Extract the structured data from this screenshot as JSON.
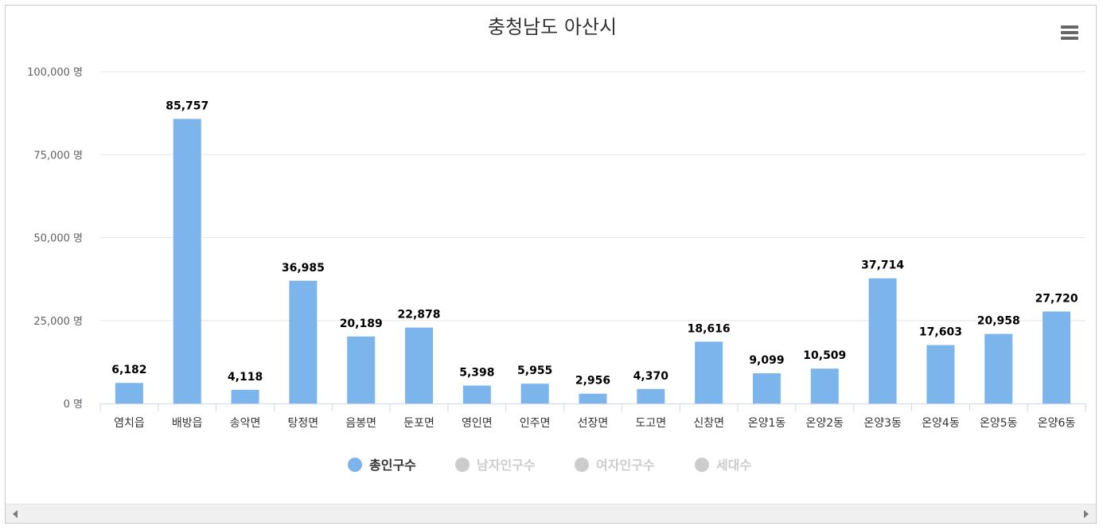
{
  "chart_data": {
    "type": "bar",
    "title": "충청남도 아산시",
    "categories": [
      "염치읍",
      "배방읍",
      "송악면",
      "탕정면",
      "음봉면",
      "둔포면",
      "영인면",
      "인주면",
      "선장면",
      "도고면",
      "신창면",
      "온양1동",
      "온양2동",
      "온양3동",
      "온양4동",
      "온양5동",
      "온양6동"
    ],
    "series": [
      {
        "name": "총인구수",
        "visible": true,
        "values": [
          6182,
          85757,
          4118,
          36985,
          20189,
          22878,
          5398,
          5955,
          2956,
          4370,
          18616,
          9099,
          10509,
          37714,
          17603,
          20958,
          27720
        ],
        "labels": [
          "6,182",
          "85,757",
          "4,118",
          "36,985",
          "20,189",
          "22,878",
          "5,398",
          "5,955",
          "2,956",
          "4,370",
          "18,616",
          "9,099",
          "10,509",
          "37,714",
          "17,603",
          "20,958",
          "27,720"
        ]
      },
      {
        "name": "남자인구수",
        "visible": false
      },
      {
        "name": "여자인구수",
        "visible": false
      },
      {
        "name": "세대수",
        "visible": false
      }
    ],
    "ylim": [
      0,
      100000
    ],
    "yticks": [
      0,
      25000,
      50000,
      75000,
      100000
    ],
    "ytick_labels": [
      "0 명",
      "25,000 명",
      "50,000 명",
      "75,000 명",
      "100,000 명"
    ],
    "grid": true,
    "legend_position": "bottom-center"
  },
  "colors": {
    "bar": "#7cb5ec",
    "legend_active": "#7cb5ec",
    "legend_inactive": "#cccccc",
    "legend_text_active": "#333333",
    "legend_text_inactive": "#cccccc",
    "grid": "#e6e6e6",
    "axis_line": "#ccd6eb"
  },
  "icons": {
    "menu": "hamburger-menu-icon",
    "scroll_left": "arrow-left-icon",
    "scroll_right": "arrow-right-icon"
  }
}
